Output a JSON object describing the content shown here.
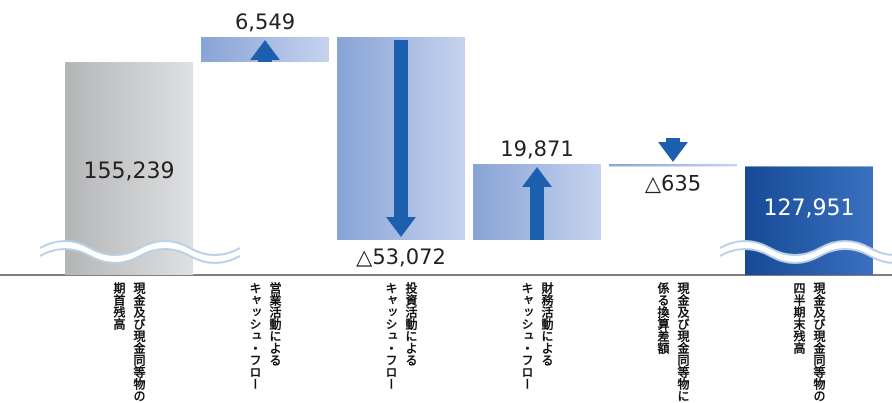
{
  "chart_data": {
    "type": "waterfall",
    "categories": [
      [
        "現金及び現金同等物の",
        "期首残高"
      ],
      [
        "営業活動による",
        "キャッシュ・フロー"
      ],
      [
        "投資活動による",
        "キャッシュ・フロー"
      ],
      [
        "財務活動による",
        "キャッシュ・フロー"
      ],
      [
        "現金及び現金同等物に",
        "係る換算差額"
      ],
      [
        "現金及び現金同等物の",
        "四半期末残高"
      ]
    ],
    "values": [
      155239,
      6549,
      -53072,
      19871,
      -635,
      127951
    ],
    "value_labels": [
      "155,239",
      "6,549",
      "△53,072",
      "19,871",
      "△635",
      "127,951"
    ],
    "total_color": [
      "#b4b5b7",
      "#dfe0e2"
    ],
    "change_color": [
      "#88a3d6",
      "#c6d3ee"
    ],
    "end_color": [
      "#164a96",
      "#3a70bf"
    ],
    "arrow_color": "#1b5fae"
  }
}
